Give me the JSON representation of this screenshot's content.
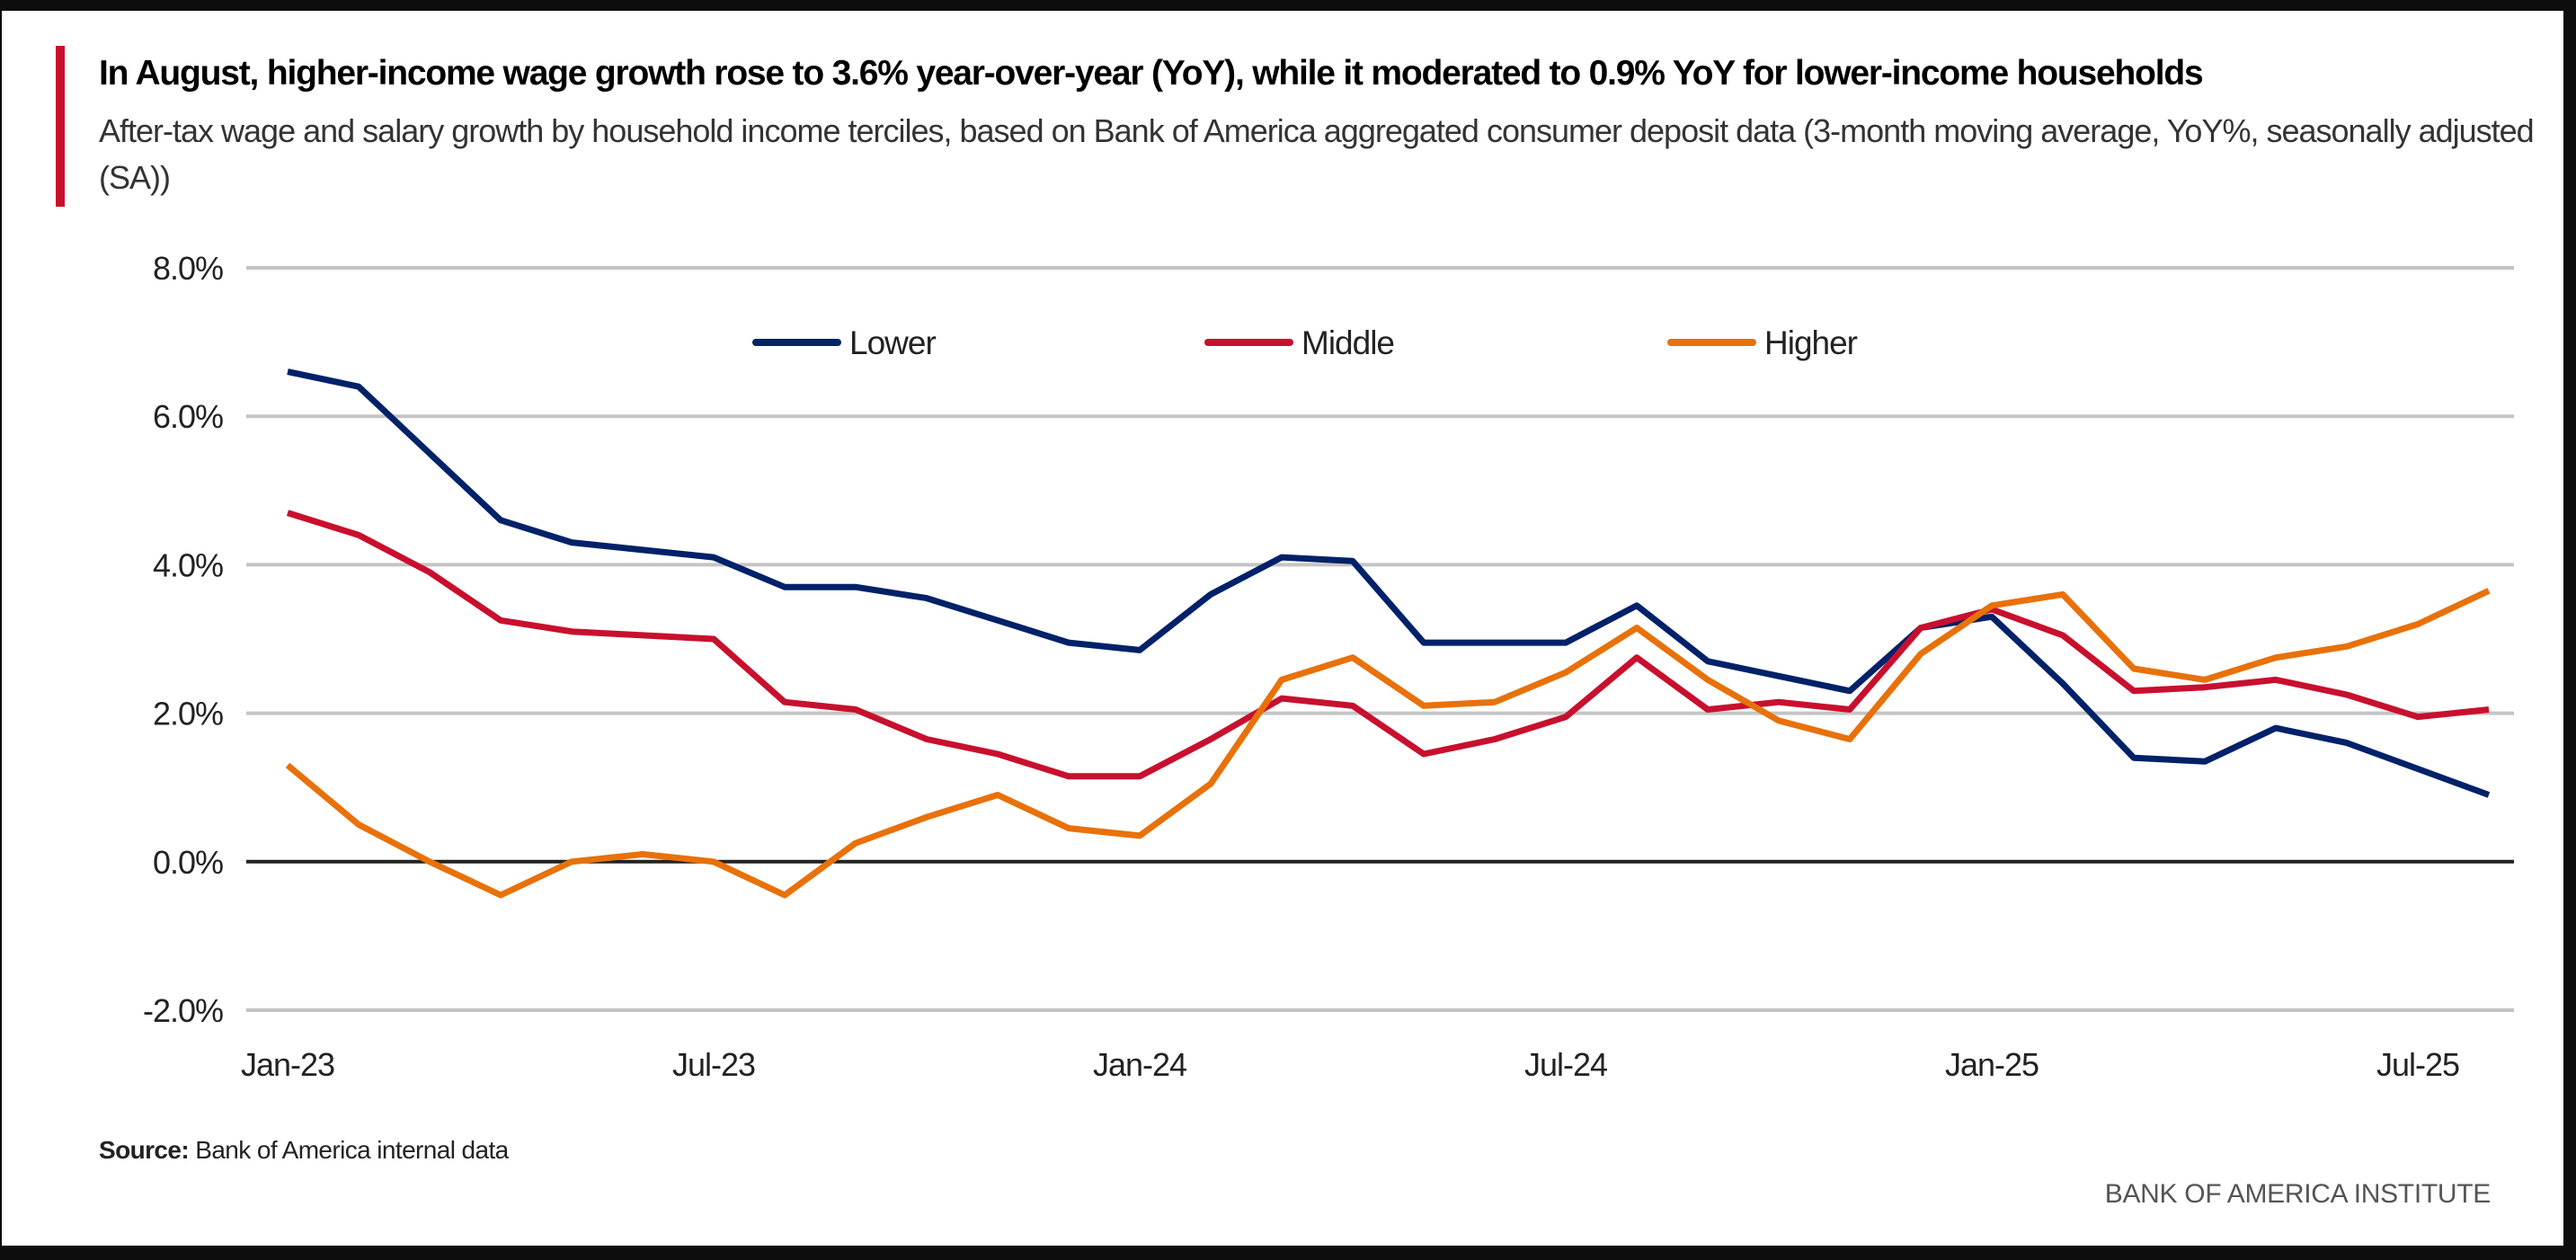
{
  "colors": {
    "accent": "#c8102e",
    "lower": "#012169",
    "middle": "#c8102e",
    "higher": "#e8710a"
  },
  "chart_data": {
    "type": "line",
    "title": "In August, higher-income wage growth rose to 3.6% year-over-year (YoY), while it moderated to 0.9% YoY for lower-income households",
    "subtitle": "After-tax wage and salary growth by household income terciles, based on Bank of America aggregated consumer deposit data (3-month moving average, YoY%, seasonally adjusted (SA))",
    "xlabel": "",
    "ylabel": "",
    "ylim": [
      -2,
      8
    ],
    "yticks": [
      -2,
      0,
      2,
      4,
      6,
      8
    ],
    "ytick_labels": [
      "-2.0%",
      "0.0%",
      "2.0%",
      "4.0%",
      "6.0%",
      "8.0%"
    ],
    "x_start": "Jan-23",
    "x_end": "Aug-25",
    "xtick_labels": [
      "Jan-23",
      "Jul-23",
      "Jan-24",
      "Jul-24",
      "Jan-25",
      "Jul-25"
    ],
    "xtick_months": [
      0,
      6,
      12,
      18,
      24,
      30
    ],
    "grid": true,
    "legend_position": "top-center",
    "series": [
      {
        "name": "Lower",
        "color": "#012169",
        "values": [
          6.6,
          6.4,
          5.5,
          4.6,
          4.3,
          4.2,
          4.1,
          3.7,
          3.7,
          3.55,
          3.25,
          2.95,
          2.85,
          3.6,
          4.1,
          4.05,
          2.95,
          2.95,
          2.95,
          3.45,
          2.7,
          2.5,
          2.3,
          3.15,
          3.3,
          2.4,
          1.4,
          1.35,
          1.8,
          1.6,
          1.25,
          0.9
        ]
      },
      {
        "name": "Middle",
        "color": "#c8102e",
        "values": [
          4.7,
          4.4,
          3.9,
          3.25,
          3.1,
          3.05,
          3.0,
          2.15,
          2.05,
          1.65,
          1.45,
          1.15,
          1.15,
          1.65,
          2.2,
          2.1,
          1.45,
          1.65,
          1.95,
          2.75,
          2.05,
          2.15,
          2.05,
          3.15,
          3.4,
          3.05,
          2.3,
          2.35,
          2.45,
          2.25,
          1.95,
          2.05
        ]
      },
      {
        "name": "Higher",
        "color": "#e8710a",
        "values": [
          1.3,
          0.5,
          0.0,
          -0.45,
          0.0,
          0.1,
          0.0,
          -0.45,
          0.25,
          0.6,
          0.9,
          0.45,
          0.35,
          1.05,
          2.45,
          2.75,
          2.1,
          2.15,
          2.55,
          3.15,
          2.45,
          1.9,
          1.65,
          2.8,
          3.45,
          3.6,
          2.6,
          2.45,
          2.75,
          2.9,
          3.2,
          3.65
        ]
      }
    ]
  },
  "footer": {
    "source_label": "Source:",
    "source_text": "Bank of America internal data",
    "brand": "BANK OF AMERICA INSTITUTE"
  }
}
